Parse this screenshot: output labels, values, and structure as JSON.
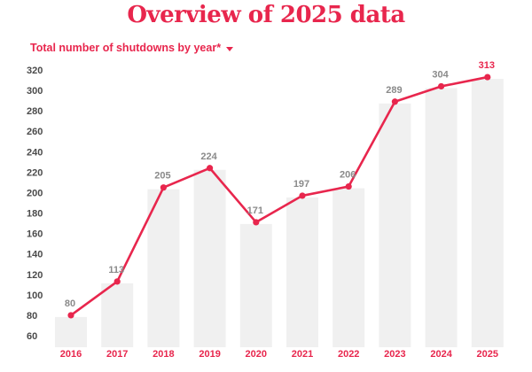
{
  "header": {
    "title": "Overview of 2025 data",
    "dropdown_label": "Total number of shutdowns by year*",
    "dropdown_icon": "chevron-down-icon"
  },
  "colors": {
    "accent": "#e8264d",
    "bar": "#f0f0f0",
    "last_label": "#e8264d",
    "data_label": "#8a8a8a"
  },
  "chart_data": {
    "type": "line",
    "title": "Overview of 2025 data",
    "xlabel": "",
    "ylabel": "",
    "ylim": [
      60,
      320
    ],
    "yticks": [
      60,
      80,
      100,
      120,
      140,
      160,
      180,
      200,
      220,
      240,
      260,
      280,
      300,
      320
    ],
    "grid": false,
    "categories": [
      "2016",
      "2017",
      "2018",
      "2019",
      "2020",
      "2021",
      "2022",
      "2023",
      "2024",
      "2025"
    ],
    "series": [
      {
        "name": "Total number of shutdowns by year",
        "values": [
          80,
          113,
          205,
          224,
          171,
          197,
          206,
          289,
          304,
          313
        ],
        "labels": [
          "80",
          "113",
          "205",
          "224",
          "171",
          "197",
          "206",
          "289",
          "304",
          "313"
        ]
      }
    ]
  }
}
